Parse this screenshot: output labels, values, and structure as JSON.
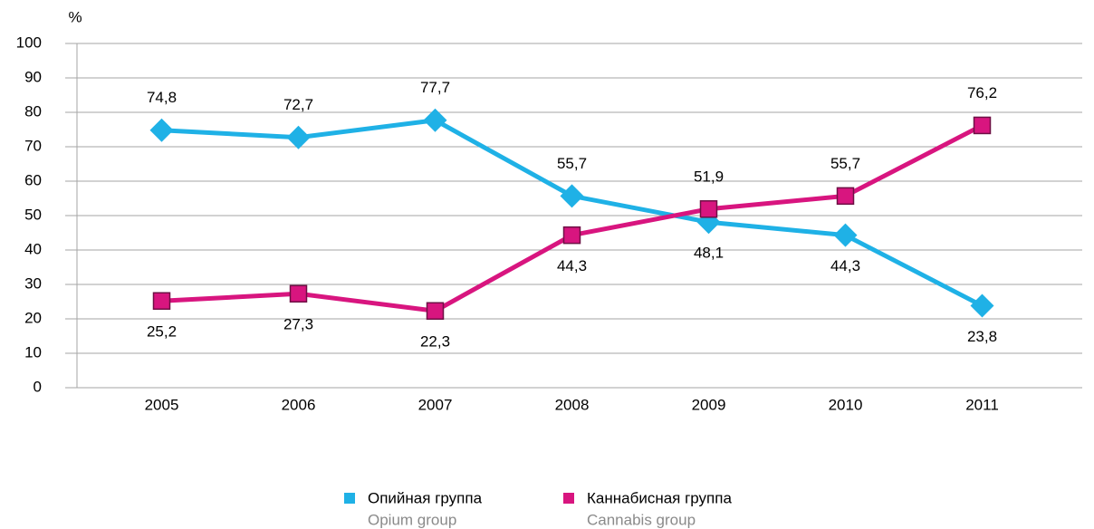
{
  "chart_data": {
    "type": "line",
    "y_axis_label": "%",
    "categories": [
      "2005",
      "2006",
      "2007",
      "2008",
      "2009",
      "2010",
      "2011"
    ],
    "series": [
      {
        "name": "Опийная группа",
        "name_en": "Opium group",
        "color": "#1fb1e6",
        "marker": "diamond",
        "values": [
          74.8,
          72.7,
          77.7,
          55.7,
          48.1,
          44.3,
          23.8
        ],
        "value_labels": [
          "74,8",
          "72,7",
          "77,7",
          "55,7",
          "48,1",
          "44,3",
          "23,8"
        ]
      },
      {
        "name": "Каннабисная группа",
        "name_en": "Cannabis group",
        "color": "#d8157f",
        "marker": "square",
        "values": [
          25.2,
          27.3,
          22.3,
          44.3,
          51.9,
          55.7,
          76.2
        ],
        "value_labels": [
          "25,2",
          "27,3",
          "22,3",
          "44,3",
          "51,9",
          "55,7",
          "76,2"
        ]
      }
    ],
    "ylim": [
      0,
      100
    ],
    "yticks": [
      0,
      10,
      20,
      30,
      40,
      50,
      60,
      70,
      80,
      90,
      100
    ],
    "grid": true,
    "legend": "bottom"
  }
}
